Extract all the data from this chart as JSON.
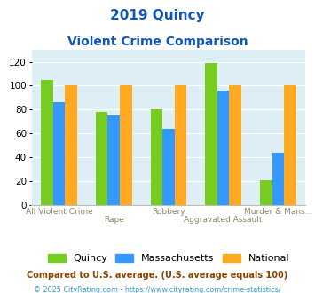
{
  "title_line1": "2019 Quincy",
  "title_line2": "Violent Crime Comparison",
  "categories": [
    "All Violent Crime",
    "Rape",
    "Robbery",
    "Aggravated Assault",
    "Murder & Mans..."
  ],
  "series": {
    "Quincy": [
      105,
      78,
      80,
      119,
      21
    ],
    "Massachusetts": [
      86,
      75,
      64,
      96,
      44
    ],
    "National": [
      100,
      100,
      100,
      100,
      100
    ]
  },
  "colors": {
    "Quincy": "#77cc22",
    "Massachusetts": "#3399ff",
    "National": "#ffaa22"
  },
  "ylim": [
    0,
    130
  ],
  "yticks": [
    0,
    20,
    40,
    60,
    80,
    100,
    120
  ],
  "footnote1": "Compared to U.S. average. (U.S. average equals 100)",
  "footnote2": "© 2025 CityRating.com - https://www.cityrating.com/crime-statistics/",
  "title_color": "#1155bb",
  "footnote1_color": "#884400",
  "footnote2_color": "#3399cc",
  "bg_color": "#ffffff",
  "plot_bg_color": "#ddeef4"
}
